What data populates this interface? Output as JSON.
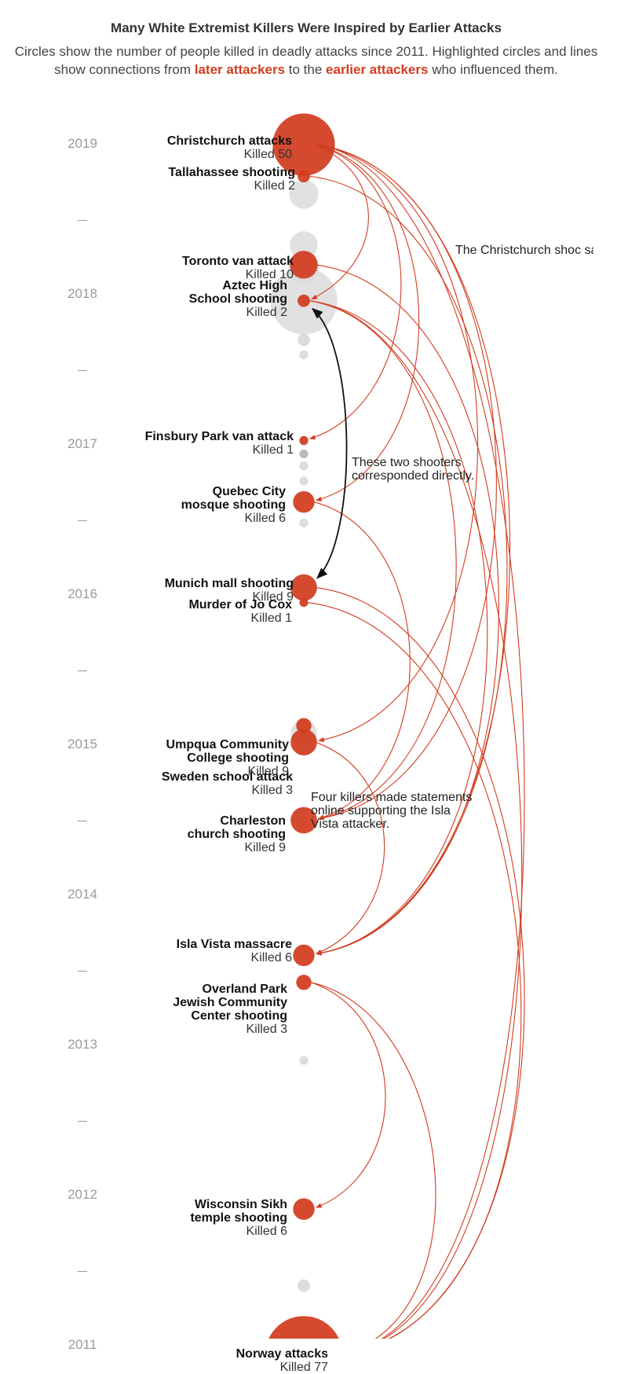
{
  "title": "Many White Extremist Killers Were Inspired by Earlier Attacks",
  "subtitle": {
    "part1": "Circles show the number of people killed in deadly attacks since 2011. Highlighted circles and lines show connections from ",
    "later": "later attackers",
    "part2": " to the ",
    "earlier": "earlier attackers",
    "part3": " who influenced them."
  },
  "colors": {
    "highlight": "#d23c1f",
    "gray": "#dcdcdc",
    "dark_gray": "#bcbcbc",
    "direct_link": "#111111"
  },
  "years": [
    "2019",
    "2018",
    "2017",
    "2016",
    "2015",
    "2014",
    "2013",
    "2012",
    "2011"
  ],
  "highlighted_attacks": [
    {
      "id": "christchurch",
      "name": "Christchurch attacks",
      "killed": 50,
      "killed_label": "Killed 50",
      "year": 2019.0
    },
    {
      "id": "tallahassee",
      "name": "Tallahassee shooting",
      "killed": 2,
      "killed_label": "Killed 2",
      "year": 2018.79
    },
    {
      "id": "toronto",
      "name": "Toronto van attack",
      "killed": 10,
      "killed_label": "Killed 10",
      "year": 2018.2
    },
    {
      "id": "aztec",
      "name": "Aztec High School shooting",
      "name_lines": [
        "Aztec High",
        "School shooting"
      ],
      "killed": 2,
      "killed_label": "Killed 2",
      "year": 2017.96
    },
    {
      "id": "finsbury",
      "name": "Finsbury Park van attack",
      "killed": 1,
      "killed_label": "Killed 1",
      "year": 2017.03
    },
    {
      "id": "quebec",
      "name": "Quebec City mosque shooting",
      "name_lines": [
        "Quebec City",
        "mosque shooting"
      ],
      "killed": 6,
      "killed_label": "Killed 6",
      "year": 2016.62
    },
    {
      "id": "munich",
      "name": "Munich mall shooting",
      "killed": 9,
      "killed_label": "Killed 9",
      "year": 2016.05
    },
    {
      "id": "jocox",
      "name": "Murder of Jo Cox",
      "killed": 1,
      "killed_label": "Killed 1",
      "year": 2015.95
    },
    {
      "id": "sweden",
      "name": "Sweden school attack",
      "killed": 3,
      "killed_label": "Killed 3",
      "year": 2015.13
    },
    {
      "id": "umpqua",
      "name": "Umpqua Community College shooting",
      "name_lines": [
        "Umpqua Community",
        "College shooting"
      ],
      "killed": 9,
      "killed_label": "Killed 9",
      "year": 2015.02
    },
    {
      "id": "charleston",
      "name": "Charleston church shooting",
      "name_lines": [
        "Charleston",
        "church shooting"
      ],
      "killed": 9,
      "killed_label": "Killed 9",
      "year": 2014.5
    },
    {
      "id": "islavista",
      "name": "Isla Vista massacre",
      "killed": 6,
      "killed_label": "Killed 6",
      "year": 2013.6
    },
    {
      "id": "overland",
      "name": "Overland Park Jewish Community Center shooting",
      "name_lines": [
        "Overland Park",
        "Jewish Community",
        "Center shooting"
      ],
      "killed": 3,
      "killed_label": "Killed 3",
      "year": 2013.42
    },
    {
      "id": "wisconsin",
      "name": "Wisconsin Sikh temple shooting",
      "name_lines": [
        "Wisconsin Sikh",
        "temple shooting"
      ],
      "killed": 6,
      "killed_label": "Killed 6",
      "year": 2011.91
    },
    {
      "id": "norway",
      "name": "Norway attacks",
      "killed": 77,
      "killed_label": "Killed 77",
      "year": 2010.94
    }
  ],
  "other_attacks": [
    {
      "year": 2018.67,
      "killed": 11
    },
    {
      "year": 2018.33,
      "killed": 10
    },
    {
      "year": 2018.18,
      "killed": 12
    },
    {
      "year": 2017.96,
      "killed": 58
    },
    {
      "year": 2017.7,
      "killed": 2
    },
    {
      "year": 2017.6,
      "killed": 1
    },
    {
      "year": 2017.02,
      "killed": 1
    },
    {
      "year": 2016.94,
      "killed": 1
    },
    {
      "year": 2016.86,
      "killed": 1
    },
    {
      "year": 2016.76,
      "killed": 1
    },
    {
      "year": 2016.48,
      "killed": 1
    },
    {
      "year": 2015.08,
      "killed": 9
    },
    {
      "year": 2012.9,
      "killed": 1
    },
    {
      "year": 2011.4,
      "killed": 2
    }
  ],
  "connections": [
    {
      "from": "christchurch",
      "to": "norway"
    },
    {
      "from": "christchurch",
      "to": "aztec"
    },
    {
      "from": "christchurch",
      "to": "finsbury"
    },
    {
      "from": "christchurch",
      "to": "quebec"
    },
    {
      "from": "christchurch",
      "to": "umpqua"
    },
    {
      "from": "christchurch",
      "to": "charleston"
    },
    {
      "from": "christchurch",
      "to": "islavista"
    },
    {
      "from": "tallahassee",
      "to": "islavista"
    },
    {
      "from": "toronto",
      "to": "islavista"
    },
    {
      "from": "aztec",
      "to": "charleston"
    },
    {
      "from": "aztec",
      "to": "islavista"
    },
    {
      "from": "aztec",
      "to": "norway"
    },
    {
      "from": "quebec",
      "to": "charleston"
    },
    {
      "from": "munich",
      "to": "norway"
    },
    {
      "from": "jocox",
      "to": "norway"
    },
    {
      "from": "umpqua",
      "to": "islavista"
    },
    {
      "from": "overland",
      "to": "wisconsin"
    },
    {
      "from": "overland",
      "to": "norway"
    }
  ],
  "direct_link": {
    "between": [
      "aztec",
      "munich"
    ]
  },
  "annotations": {
    "christchurch_note": "The Christchurch shoc\nsaid he was inspired b\nthe Norway attacker.",
    "direct_note": "These two shooters\ncorresponded directly.",
    "islavista_note": "Four killers made statements\nonline supporting the Isla\nVista attacker."
  }
}
